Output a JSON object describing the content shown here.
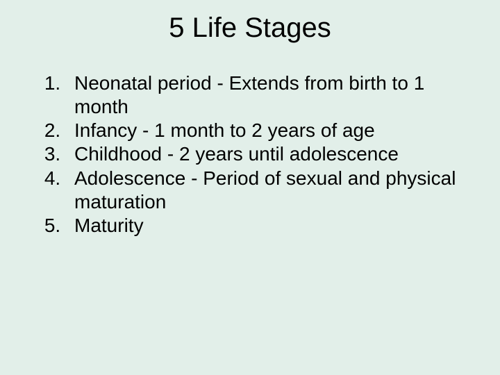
{
  "background_color": "#e2efe9",
  "text_color": "#000000",
  "title": {
    "text": "5 Life Stages",
    "fontsize": 40,
    "align": "center"
  },
  "list": {
    "type": "ordered",
    "fontsize": 28,
    "items": [
      "Neonatal period - Extends from birth to 1 month",
      "Infancy - 1 month to 2 years of age",
      "Childhood - 2 years until adolescence",
      "Adolescence - Period of sexual and physical maturation",
      "Maturity"
    ]
  }
}
